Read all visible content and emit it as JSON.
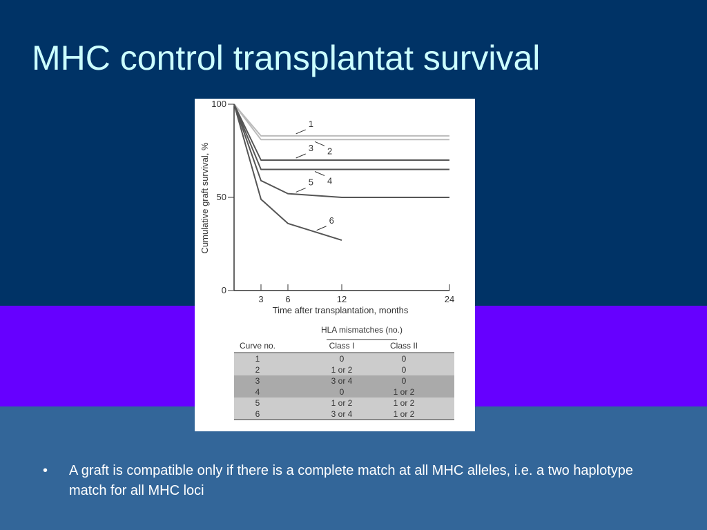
{
  "slide": {
    "title": "MHC control transplantat survival",
    "bullet_symbol": "•",
    "bullets": [
      "A graft  is compatible only if there is a complete match at all MHC alleles, i.e. a two haplotype match for all MHC loci"
    ],
    "colors": {
      "band_top": "#003366",
      "band_middle": "#6600ff",
      "band_bottom": "#336699",
      "title_text": "#ccffff",
      "body_text": "#ffffff"
    }
  },
  "chart_data": {
    "type": "line",
    "xlabel": "Time after transplantation, months",
    "ylabel": "Cumulative graft survival, %",
    "x_ticks": [
      3,
      6,
      12,
      24
    ],
    "y_ticks": [
      0,
      50,
      100
    ],
    "xlim": [
      0,
      24
    ],
    "ylim": [
      0,
      100
    ],
    "series": [
      {
        "name": "1",
        "color": "#bbbbbb",
        "points": [
          [
            0,
            100
          ],
          [
            3,
            83
          ],
          [
            24,
            83
          ]
        ]
      },
      {
        "name": "2",
        "color": "#bbbbbb",
        "points": [
          [
            0,
            100
          ],
          [
            3,
            81
          ],
          [
            24,
            81
          ]
        ]
      },
      {
        "name": "3",
        "color": "#555555",
        "points": [
          [
            0,
            100
          ],
          [
            3,
            70
          ],
          [
            24,
            70
          ]
        ]
      },
      {
        "name": "4",
        "color": "#555555",
        "points": [
          [
            0,
            100
          ],
          [
            3,
            65
          ],
          [
            24,
            65
          ]
        ]
      },
      {
        "name": "5",
        "color": "#555555",
        "points": [
          [
            0,
            100
          ],
          [
            3,
            59
          ],
          [
            6,
            52
          ],
          [
            12,
            50
          ],
          [
            24,
            50
          ]
        ]
      },
      {
        "name": "6",
        "color": "#555555",
        "points": [
          [
            0,
            100
          ],
          [
            3,
            49
          ],
          [
            6,
            36
          ],
          [
            12,
            27
          ]
        ]
      }
    ],
    "table": {
      "group_header": "HLA mismatches (no.)",
      "columns": [
        "Curve no.",
        "Class I",
        "Class II"
      ],
      "rows": [
        [
          "1",
          "0",
          "0"
        ],
        [
          "2",
          "1 or 2",
          "0"
        ],
        [
          "3",
          "3 or 4",
          "0"
        ],
        [
          "4",
          "0",
          "1 or 2"
        ],
        [
          "5",
          "1 or 2",
          "1 or 2"
        ],
        [
          "6",
          "3 or 4",
          "1 or 2"
        ]
      ],
      "row_shading": [
        "#cccccc",
        "#cccccc",
        "#aaaaaa",
        "#aaaaaa",
        "#cccccc",
        "#cccccc"
      ]
    }
  }
}
